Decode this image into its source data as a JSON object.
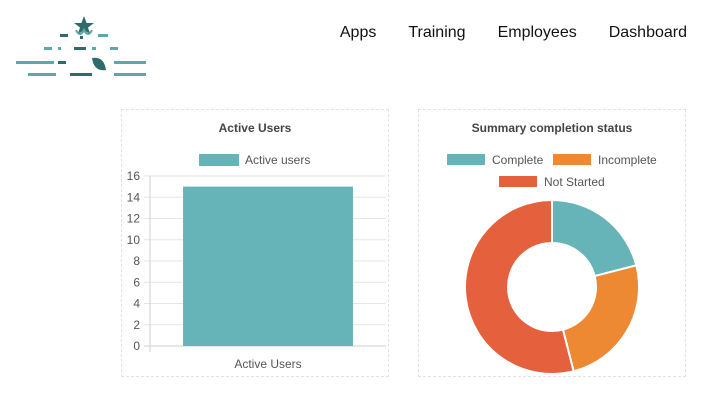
{
  "header": {
    "nav": [
      {
        "label": "Apps"
      },
      {
        "label": "Training"
      },
      {
        "label": "Employees"
      },
      {
        "label": "Dashboard"
      }
    ]
  },
  "colors": {
    "teal": "#66b4b8",
    "orange": "#ed8833",
    "red": "#e5603c",
    "logo_dark": "#2e6b6a",
    "logo_light": "#5fa6ad"
  },
  "chart_data": [
    {
      "type": "bar",
      "title": "Active Users",
      "categories": [
        "Active Users"
      ],
      "series": [
        {
          "name": "Active users",
          "values": [
            15
          ],
          "color": "#66b4b8"
        }
      ],
      "ylim": [
        0,
        16
      ],
      "yticks": [
        0,
        2,
        4,
        6,
        8,
        10,
        12,
        14,
        16
      ],
      "legend": "top",
      "grid": true
    },
    {
      "type": "pie",
      "title": "Summary completion status",
      "labels": [
        "Complete",
        "Incomplete",
        "Not Started"
      ],
      "values": [
        21,
        25,
        54
      ],
      "colors": [
        "#66b4b8",
        "#ed8833",
        "#e5603c"
      ],
      "donut": true,
      "legend": "top"
    }
  ]
}
